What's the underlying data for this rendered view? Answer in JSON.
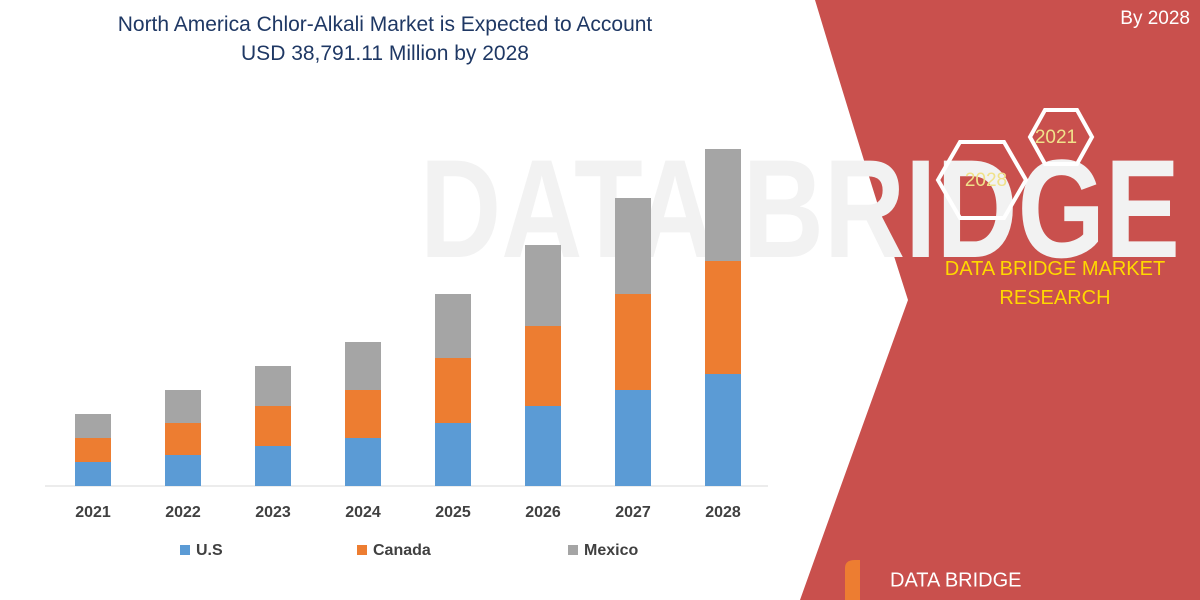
{
  "chart_data": {
    "type": "bar",
    "stacked": true,
    "title": [
      "North America Chlor-Alkali Market is Expected to Account",
      "USD 38,791.11 Million by 2028"
    ],
    "categories": [
      "2021",
      "2022",
      "2023",
      "2024",
      "2025",
      "2026",
      "2027",
      "2028"
    ],
    "series": [
      {
        "name": "U.S",
        "color": "#5b9bd5",
        "values": [
          24,
          31,
          40,
          48,
          63,
          80,
          96,
          112
        ]
      },
      {
        "name": "Canada",
        "color": "#ed7d31",
        "values": [
          24,
          32,
          40,
          48,
          65,
          80,
          96,
          113
        ]
      },
      {
        "name": "Mexico",
        "color": "#a5a5a5",
        "values": [
          24,
          33,
          40,
          48,
          64,
          81,
          96,
          112
        ]
      }
    ]
  },
  "panel": {
    "by_year": "By 2028",
    "hex_labels": [
      "2021",
      "2028"
    ],
    "brand": "DATA BRIDGE MARKET RESEARCH",
    "logo": "DATA BRIDGE"
  }
}
